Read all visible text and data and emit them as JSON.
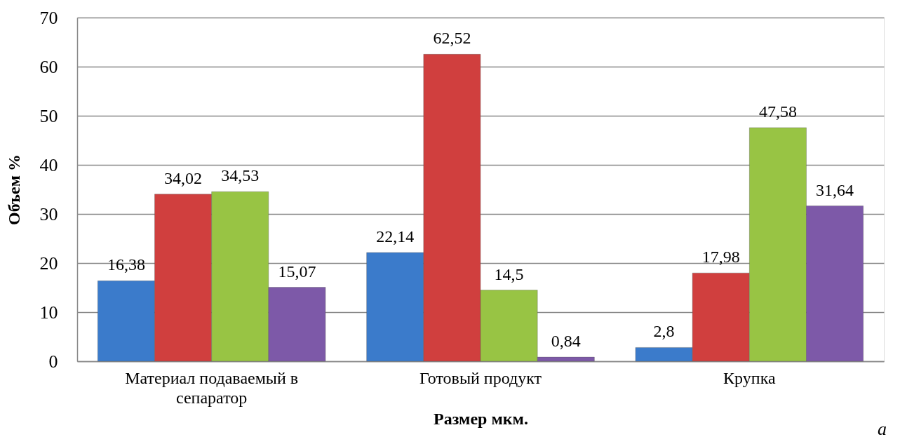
{
  "chart_data": {
    "type": "bar",
    "xlabel": "Размер мкм.",
    "ylabel": "Объем %",
    "categories": [
      "Материал подаваемый в сепаратор",
      "Готовый продукт",
      "Крупка"
    ],
    "series": [
      {
        "color": "#3b7bcb",
        "values": [
          16.38,
          22.14,
          2.8
        ],
        "value_labels": [
          "16,38",
          "22,14",
          "2,8"
        ]
      },
      {
        "color": "#d03f3e",
        "values": [
          34.02,
          62.52,
          17.98
        ],
        "value_labels": [
          "34,02",
          "62,52",
          "17,98"
        ]
      },
      {
        "color": "#98c444",
        "values": [
          34.53,
          14.5,
          47.58
        ],
        "value_labels": [
          "34,53",
          "14,5",
          "47,58"
        ]
      },
      {
        "color": "#7d59a8",
        "values": [
          15.07,
          0.84,
          31.64
        ],
        "value_labels": [
          "15,07",
          "0,84",
          "31,64"
        ]
      }
    ],
    "ylim": [
      0,
      70
    ],
    "yticks": [
      0,
      10,
      20,
      30,
      40,
      50,
      60,
      70
    ],
    "grid": "y",
    "annotations": [
      "а"
    ]
  }
}
